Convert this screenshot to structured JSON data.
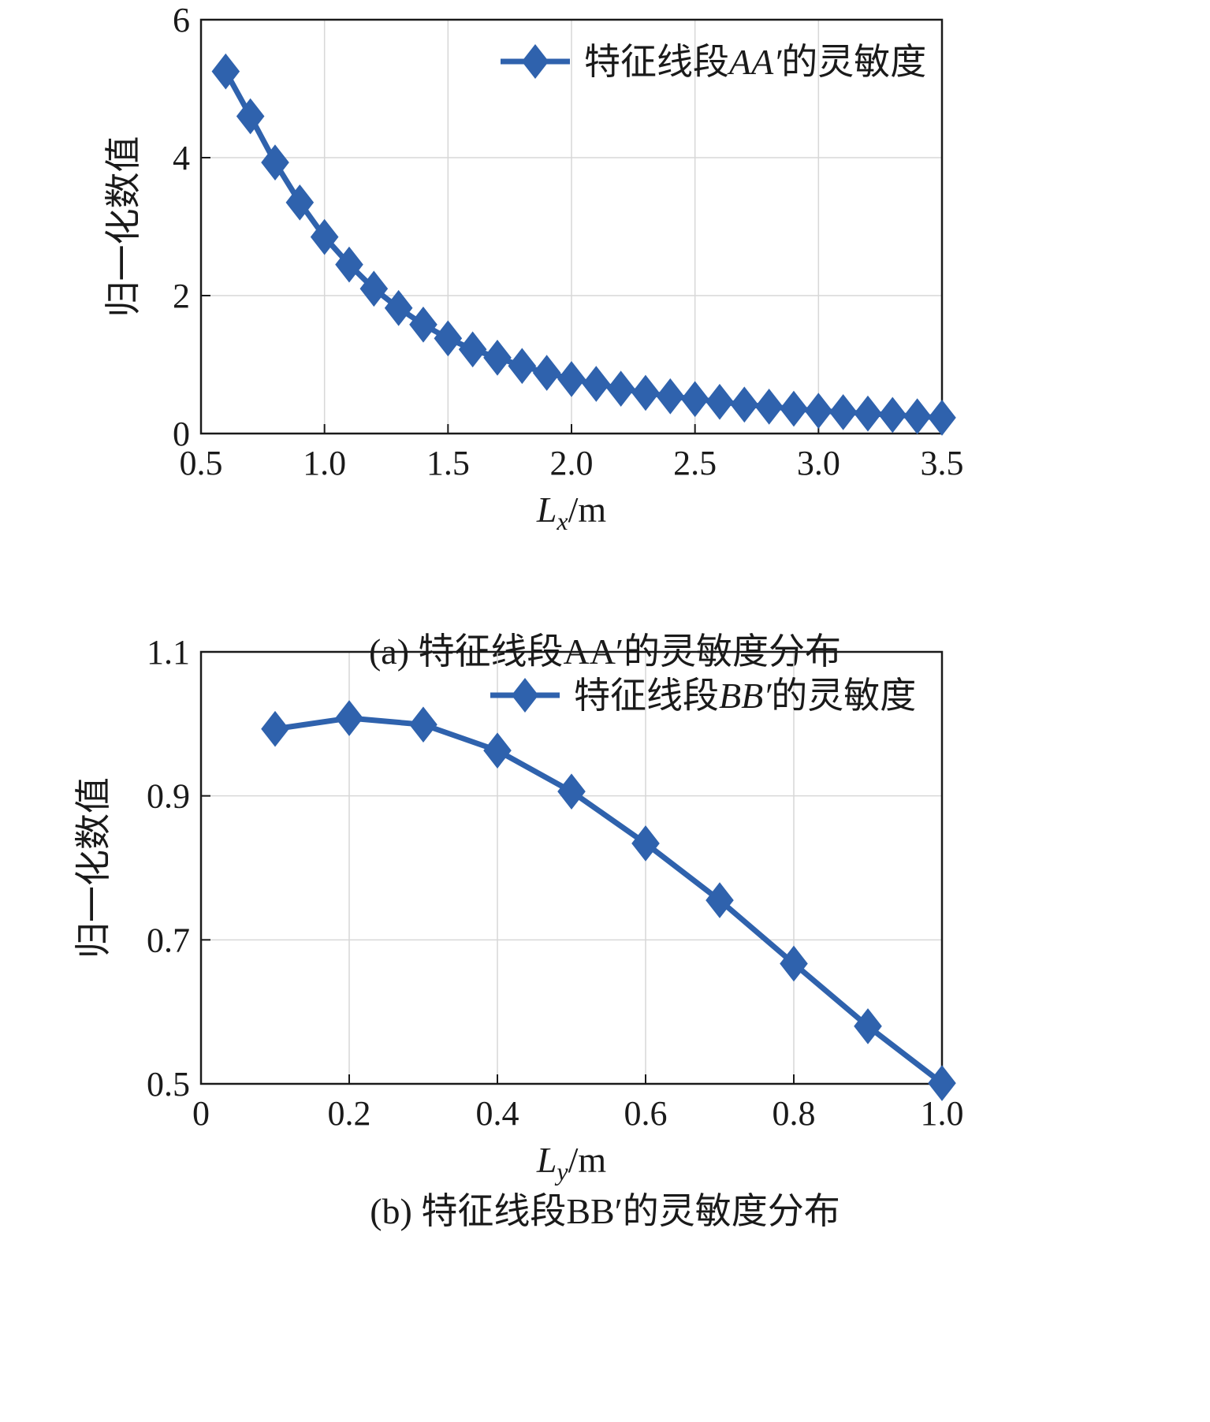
{
  "chart_data": [
    {
      "type": "line",
      "id": "a",
      "caption": "(a) 特征线段AA′的灵敏度分布",
      "xlabel": "Lx/m",
      "ylabel": "归一化数值",
      "xlim": [
        0.5,
        3.5
      ],
      "ylim": [
        0,
        6
      ],
      "xticks": [
        0.5,
        1.0,
        1.5,
        2.0,
        2.5,
        3.0,
        3.5
      ],
      "xtick_labels": [
        "0.5",
        "1.0",
        "1.5",
        "2.0",
        "2.5",
        "3.0",
        "3.5"
      ],
      "yticks": [
        0,
        2,
        4,
        6
      ],
      "ytick_labels": [
        "0",
        "2",
        "4",
        "6"
      ],
      "grid": true,
      "legend_position": "top-right",
      "series": [
        {
          "name": "特征线段AA′的灵敏度",
          "color": "#2f62ad",
          "marker": "diamond",
          "x": [
            0.6,
            0.7,
            0.8,
            0.9,
            1.0,
            1.1,
            1.2,
            1.3,
            1.4,
            1.5,
            1.6,
            1.7,
            1.8,
            1.9,
            2.0,
            2.1,
            2.2,
            2.3,
            2.4,
            2.5,
            2.6,
            2.7,
            2.8,
            2.9,
            3.0,
            3.1,
            3.2,
            3.3,
            3.4,
            3.5
          ],
          "y": [
            5.25,
            4.6,
            3.93,
            3.35,
            2.85,
            2.45,
            2.1,
            1.82,
            1.58,
            1.38,
            1.22,
            1.1,
            0.98,
            0.88,
            0.79,
            0.72,
            0.65,
            0.59,
            0.54,
            0.5,
            0.46,
            0.42,
            0.39,
            0.36,
            0.33,
            0.31,
            0.29,
            0.27,
            0.25,
            0.23
          ]
        }
      ]
    },
    {
      "type": "line",
      "id": "b",
      "caption": "(b) 特征线段BB′的灵敏度分布",
      "xlabel": "Ly/m",
      "ylabel": "归一化数值",
      "xlim": [
        0,
        1.0
      ],
      "ylim": [
        0.5,
        1.1
      ],
      "xticks": [
        0,
        0.2,
        0.4,
        0.6,
        0.8,
        1.0
      ],
      "xtick_labels": [
        "0",
        "0.2",
        "0.4",
        "0.6",
        "0.8",
        "1.0"
      ],
      "yticks": [
        0.5,
        0.7,
        0.9,
        1.1
      ],
      "ytick_labels": [
        "0.5",
        "0.7",
        "0.9",
        "1.1"
      ],
      "grid": true,
      "legend_position": "top-right",
      "series": [
        {
          "name": "特征线段BB′的灵敏度",
          "color": "#2f62ad",
          "marker": "diamond",
          "x": [
            0.1,
            0.2,
            0.3,
            0.4,
            0.5,
            0.6,
            0.7,
            0.8,
            0.9,
            1.0
          ],
          "y": [
            0.993,
            1.008,
            0.999,
            0.963,
            0.906,
            0.834,
            0.755,
            0.667,
            0.58,
            0.501
          ]
        }
      ]
    }
  ]
}
